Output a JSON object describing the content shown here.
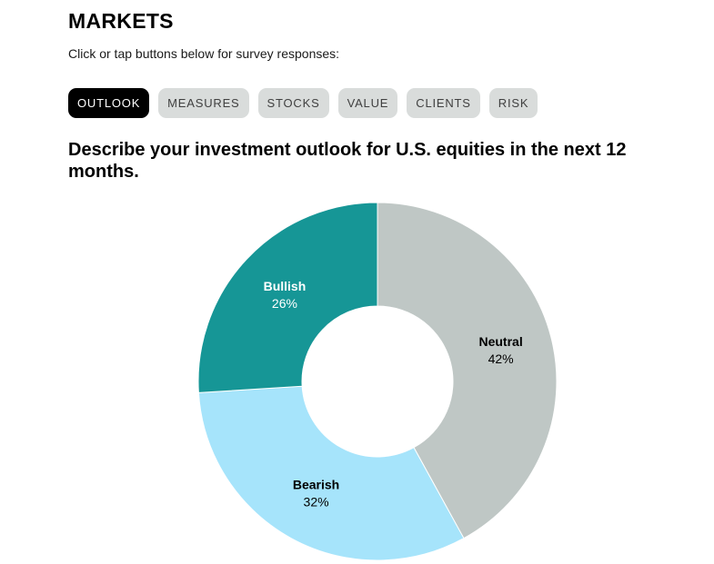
{
  "header": {
    "title": "MARKETS",
    "instructions": "Click or tap buttons below for survey responses:"
  },
  "tabs": [
    {
      "label": "OUTLOOK",
      "active": true
    },
    {
      "label": "MEASURES",
      "active": false
    },
    {
      "label": "STOCKS",
      "active": false
    },
    {
      "label": "VALUE",
      "active": false
    },
    {
      "label": "CLIENTS",
      "active": false
    },
    {
      "label": "RISK",
      "active": false
    }
  ],
  "question": "Describe your investment outlook for U.S. equities in the next 12 months.",
  "colors": {
    "active_tab": "#000000",
    "inactive_tab": "#d9dcdb",
    "neutral": "#bfc7c5",
    "bearish": "#a6e4fb",
    "bullish": "#169696"
  },
  "chart_data": {
    "type": "pie",
    "hole": true,
    "slices": [
      {
        "label": "Neutral",
        "value": 42,
        "display": "42%",
        "color": "#bfc7c5",
        "text_color": "#000000"
      },
      {
        "label": "Bearish",
        "value": 32,
        "display": "32%",
        "color": "#a6e4fb",
        "text_color": "#000000"
      },
      {
        "label": "Bullish",
        "value": 26,
        "display": "26%",
        "color": "#169696",
        "text_color": "#ffffff"
      }
    ]
  }
}
